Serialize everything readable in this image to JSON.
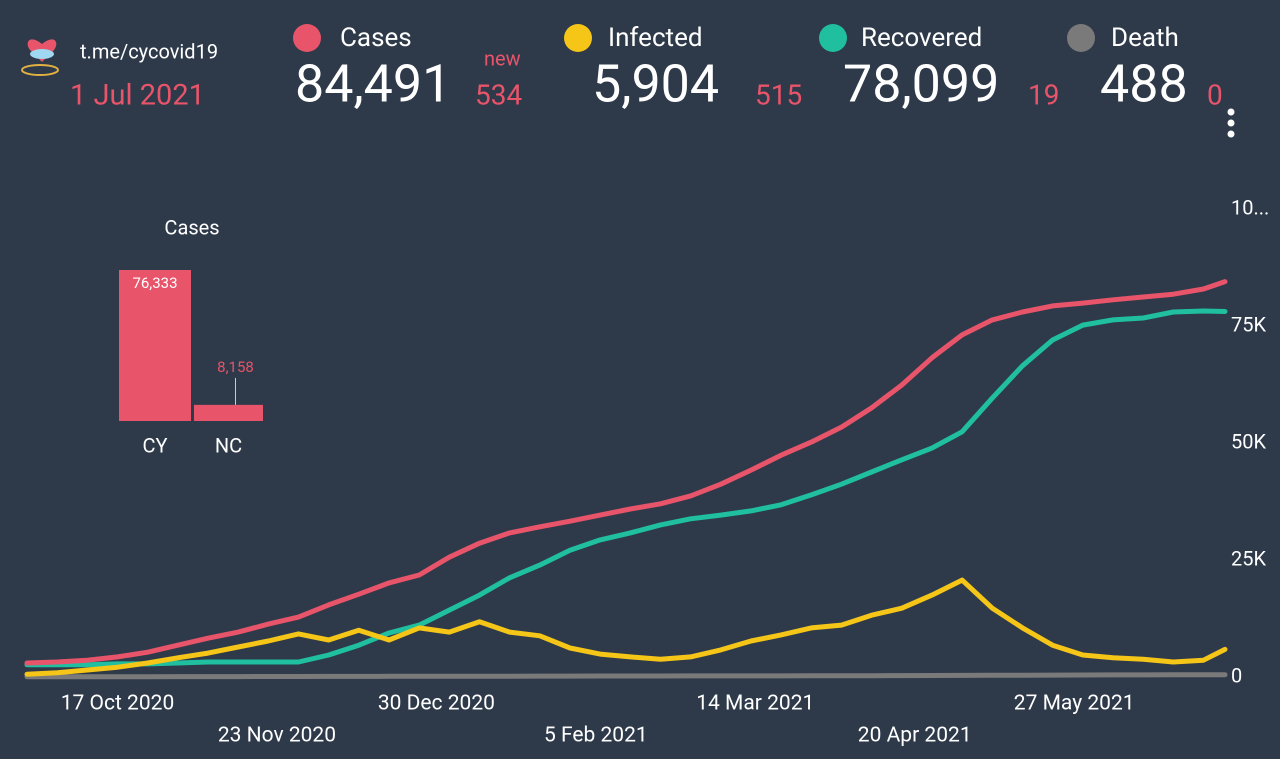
{
  "header": {
    "source": "t.me/cycovid19",
    "date": "1 Jul 2021",
    "new_label": "new",
    "stats": [
      {
        "total": "84,491",
        "new": "534"
      },
      {
        "total": "5,904",
        "new": "515"
      },
      {
        "total": "78,099",
        "new": "19"
      },
      {
        "total": "488",
        "new": "0"
      }
    ]
  },
  "chart_data": [
    {
      "type": "bar",
      "title": "Cases",
      "categories": [
        "CY",
        "NC"
      ],
      "values": [
        76333,
        8158
      ],
      "value_labels": [
        "76,333",
        "8,158"
      ],
      "color": "#e8546a"
    },
    {
      "type": "line",
      "x": [
        "2020-09-26",
        "2020-10-03",
        "2020-10-10",
        "2020-10-17",
        "2020-10-24",
        "2020-10-31",
        "2020-11-07",
        "2020-11-14",
        "2020-11-21",
        "2020-11-28",
        "2020-12-05",
        "2020-12-12",
        "2020-12-19",
        "2020-12-26",
        "2021-01-02",
        "2021-01-09",
        "2021-01-16",
        "2021-01-23",
        "2021-01-30",
        "2021-02-06",
        "2021-02-13",
        "2021-02-20",
        "2021-02-27",
        "2021-03-06",
        "2021-03-13",
        "2021-03-20",
        "2021-03-27",
        "2021-04-03",
        "2021-04-10",
        "2021-04-17",
        "2021-04-24",
        "2021-05-01",
        "2021-05-08",
        "2021-05-15",
        "2021-05-22",
        "2021-05-29",
        "2021-06-05",
        "2021-06-12",
        "2021-06-19",
        "2021-06-26",
        "2021-07-01"
      ],
      "xlim": [
        "2020-09-26",
        "2021-07-01"
      ],
      "xticks": [
        {
          "value": "2020-10-17",
          "label": "17 Oct 2020"
        },
        {
          "value": "2020-11-23",
          "label": "23 Nov 2020"
        },
        {
          "value": "2020-12-30",
          "label": "30 Dec 2020"
        },
        {
          "value": "2021-02-05",
          "label": "5 Feb 2021"
        },
        {
          "value": "2021-03-14",
          "label": "14 Mar 2021"
        },
        {
          "value": "2021-04-20",
          "label": "20 Apr 2021"
        },
        {
          "value": "2021-05-27",
          "label": "27 May 2021"
        }
      ],
      "ylim": [
        0,
        100000
      ],
      "yticks": [
        0,
        {
          "value": 25000,
          "label": "25K"
        },
        {
          "value": 50000,
          "label": "50K"
        },
        {
          "value": 75000,
          "label": "75K"
        },
        {
          "value": 100000,
          "label": "10..."
        }
      ],
      "series": [
        {
          "name": "Cases",
          "color": "#e8546a",
          "values": [
            3000,
            3200,
            3600,
            4300,
            5300,
            6800,
            8300,
            9600,
            11300,
            12800,
            15400,
            17700,
            20100,
            21800,
            25600,
            28600,
            30800,
            32100,
            33300,
            34600,
            35900,
            37000,
            38700,
            41200,
            44200,
            47400,
            50200,
            53400,
            57500,
            62400,
            68200,
            73100,
            76300,
            78000,
            79300,
            79900,
            80600,
            81200,
            81800,
            82900,
            84491
          ]
        },
        {
          "name": "Infected",
          "color": "#f5c518",
          "values": [
            600,
            900,
            1500,
            2100,
            3000,
            4100,
            5100,
            6400,
            7700,
            9200,
            7900,
            10000,
            7900,
            10500,
            9600,
            11800,
            9600,
            8800,
            6200,
            4900,
            4300,
            3800,
            4300,
            5800,
            7700,
            9000,
            10500,
            11100,
            13200,
            14700,
            17500,
            20700,
            14700,
            10500,
            6800,
            4700,
            4100,
            3800,
            3200,
            3600,
            5904
          ]
        },
        {
          "name": "Recovered",
          "color": "#1fbf9f",
          "values": [
            2600,
            2600,
            2600,
            2800,
            2800,
            3000,
            3200,
            3200,
            3200,
            3200,
            4700,
            6800,
            9400,
            11100,
            14300,
            17500,
            21200,
            23900,
            27100,
            29300,
            30800,
            32500,
            33800,
            34600,
            35500,
            36800,
            38900,
            41200,
            43800,
            46400,
            48900,
            52400,
            59600,
            66500,
            72000,
            75200,
            76300,
            76700,
            78000,
            78200,
            78099
          ]
        },
        {
          "name": "Death",
          "color": "#7a7a7a",
          "values": [
            50,
            55,
            60,
            65,
            70,
            75,
            80,
            90,
            100,
            110,
            120,
            130,
            140,
            150,
            160,
            170,
            180,
            190,
            200,
            210,
            215,
            220,
            225,
            230,
            235,
            240,
            250,
            260,
            280,
            300,
            320,
            340,
            360,
            380,
            400,
            420,
            440,
            450,
            460,
            470,
            488
          ]
        }
      ]
    }
  ]
}
